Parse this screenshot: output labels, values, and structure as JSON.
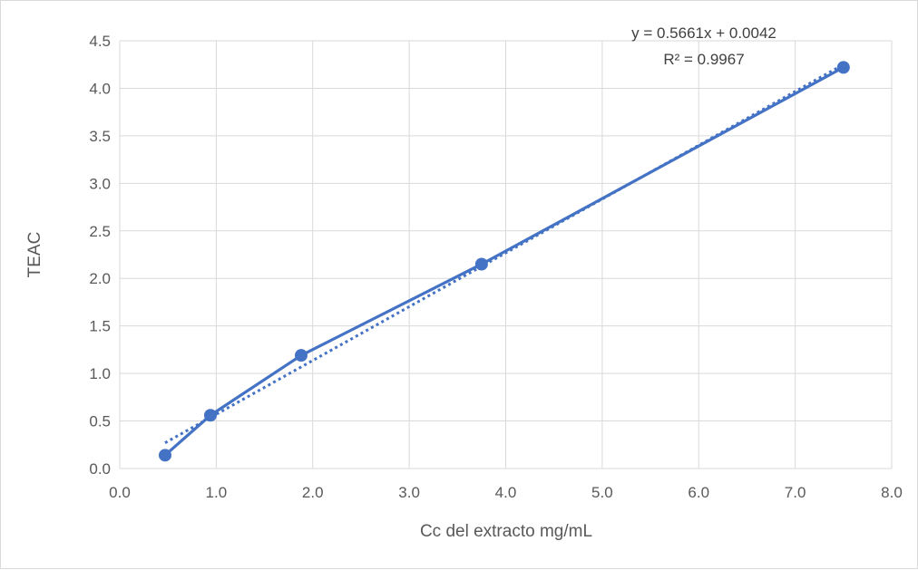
{
  "chart_data": {
    "type": "scatter",
    "xlabel": "Cc del extracto mg/mL",
    "ylabel": "TEAC",
    "xlim": [
      0,
      8
    ],
    "ylim": [
      0,
      4.5
    ],
    "x_ticks": [
      "0.0",
      "1.0",
      "2.0",
      "3.0",
      "4.0",
      "5.0",
      "6.0",
      "7.0",
      "8.0"
    ],
    "y_ticks": [
      "0.0",
      "0.5",
      "1.0",
      "1.5",
      "2.0",
      "2.5",
      "3.0",
      "3.5",
      "4.0",
      "4.5"
    ],
    "grid": true,
    "series": [
      {
        "x": [
          0.47,
          0.94,
          1.88,
          3.75,
          7.5
        ],
        "y": [
          0.14,
          0.56,
          1.19,
          2.15,
          4.22
        ],
        "color": "#4472c4",
        "style": "line with markers"
      }
    ],
    "trendline": {
      "type": "linear",
      "slope": 0.5661,
      "intercept": 0.0042,
      "x_range": [
        0.47,
        7.5
      ],
      "color": "#4472c4",
      "style": "dotted"
    },
    "annotations": {
      "equation": "y = 0.5661x + 0.0042",
      "r_squared": "R² = 0.9967"
    }
  }
}
